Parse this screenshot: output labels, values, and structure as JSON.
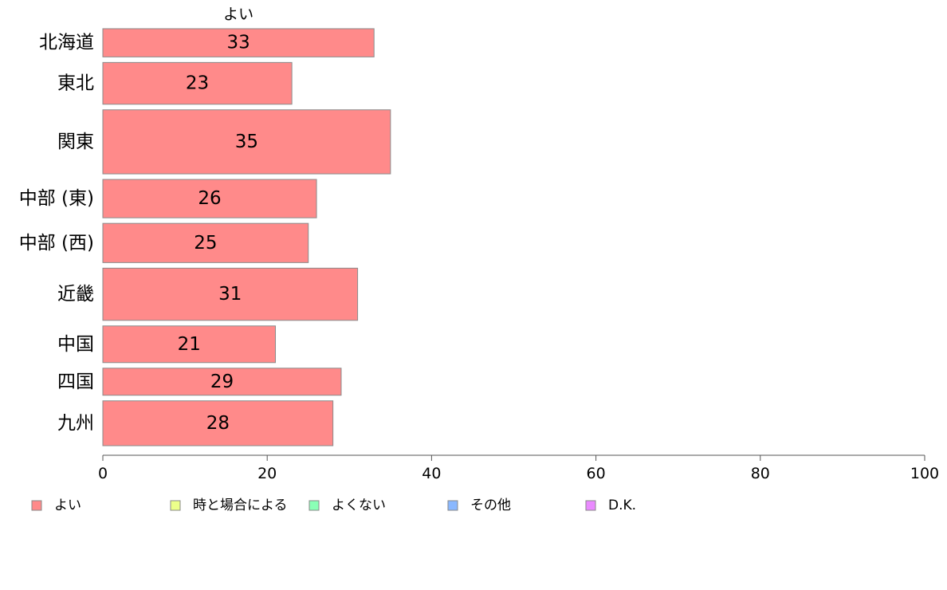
{
  "chart_data": {
    "type": "bar",
    "orientation": "horizontal",
    "stacked": true,
    "categories": [
      "北海道",
      "東北",
      "関東",
      "中部 (東)",
      "中部 (西)",
      "近畿",
      "中国",
      "四国",
      "九州"
    ],
    "relative_widths": [
      1.0,
      1.48,
      2.27,
      1.36,
      1.39,
      1.85,
      1.3,
      0.96,
      1.59
    ],
    "series": [
      {
        "name": "よい",
        "values": [
          33,
          23,
          35,
          26,
          25,
          31,
          21,
          29,
          28
        ],
        "color": "#ff8a8a"
      }
    ],
    "column_header": "よい",
    "xlim": [
      0,
      100
    ],
    "xticks": [
      0,
      20,
      40,
      60,
      80,
      100
    ],
    "grid": false,
    "legend_position": "bottom",
    "legend": [
      {
        "label": "よい",
        "color": "#ff8a8a"
      },
      {
        "label": "時と場合による",
        "color": "#ecff8a"
      },
      {
        "label": "よくない",
        "color": "#8affb6"
      },
      {
        "label": "その他",
        "color": "#8ab8ff"
      },
      {
        "label": "D.K.",
        "color": "#ea8aff"
      }
    ]
  }
}
